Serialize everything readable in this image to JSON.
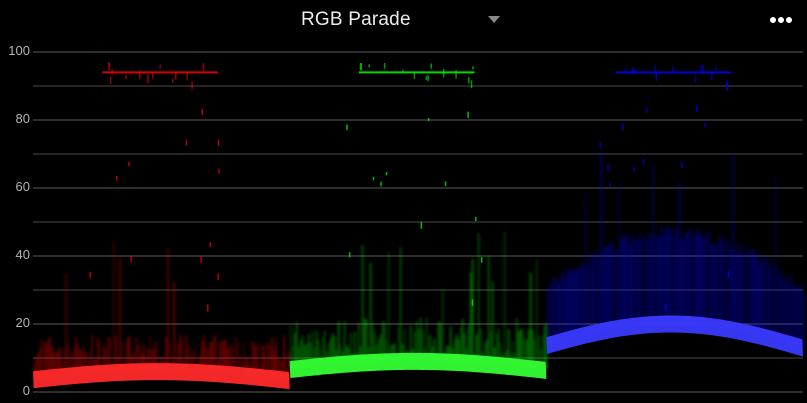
{
  "header": {
    "title": "RGB Parade",
    "dropdown_icon": "caret-down-icon",
    "menu_icon": "more-dots-icon"
  },
  "scale": {
    "labels": [
      "100",
      "80",
      "60",
      "40",
      "20",
      "0"
    ],
    "min": 0,
    "max": 100
  },
  "channels": [
    {
      "name": "red",
      "color": "#ff0000",
      "glow": "#ff2a2a",
      "floor_low": 3,
      "floor_high": 6,
      "body_top": 17
    },
    {
      "name": "green",
      "color": "#00ff00",
      "glow": "#33ff33",
      "floor_low": 6,
      "floor_high": 9,
      "body_top": 22
    },
    {
      "name": "blue",
      "color": "#0000ff",
      "glow": "#3a3aff",
      "floor_low": 12,
      "floor_high": 20,
      "body_top": 45
    }
  ],
  "colors": {
    "background": "#000000",
    "gridline": "#4a4a4a",
    "text": "#e8e8e8",
    "axis_text": "#b4b4b4"
  }
}
